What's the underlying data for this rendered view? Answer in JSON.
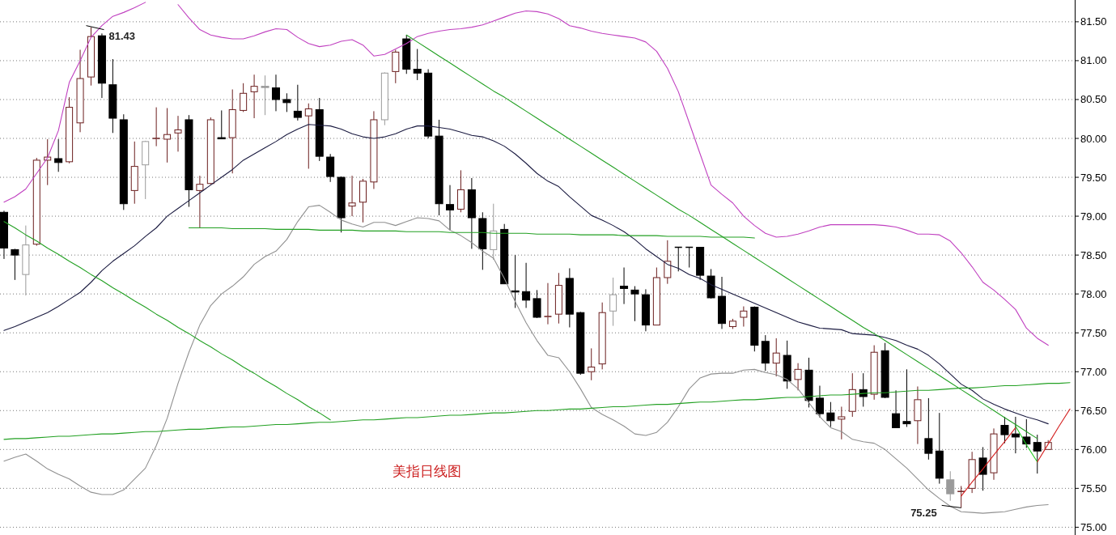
{
  "chart_data": {
    "type": "candlestick",
    "categories": [
      null,
      null,
      null,
      null,
      null,
      null,
      null,
      null,
      null,
      null,
      null,
      null,
      null,
      null,
      null,
      null,
      null,
      null,
      null,
      null,
      null,
      null,
      null,
      null,
      null,
      null,
      null,
      null,
      null,
      null,
      null,
      null,
      null,
      null,
      null,
      null,
      null,
      null,
      null,
      null,
      null,
      null,
      null,
      null,
      null,
      null,
      null,
      null,
      null,
      null,
      null,
      null,
      null,
      null,
      null,
      null,
      null,
      null,
      null,
      null,
      null,
      null,
      null,
      null,
      null,
      null,
      null,
      null,
      null,
      null,
      null,
      null,
      null,
      null,
      null,
      null,
      null,
      null,
      null,
      null,
      null,
      null,
      null,
      null,
      null,
      null,
      null,
      null,
      null,
      null,
      null,
      null,
      null,
      null,
      null,
      null,
      null,
      null,
      null
    ],
    "ohlc": [
      [
        79.05,
        79.07,
        78.45,
        78.59
      ],
      [
        78.57,
        78.58,
        78.18,
        78.5
      ],
      [
        78.25,
        78.88,
        77.98,
        78.63
      ],
      [
        78.64,
        79.75,
        78.62,
        79.72
      ],
      [
        79.72,
        79.99,
        79.4,
        79.76
      ],
      [
        79.74,
        79.99,
        79.57,
        79.69
      ],
      [
        79.7,
        80.53,
        79.68,
        80.4
      ],
      [
        80.2,
        81.14,
        80.08,
        80.77
      ],
      [
        80.79,
        81.43,
        80.68,
        81.31
      ],
      [
        81.32,
        81.35,
        80.52,
        80.71
      ],
      [
        80.69,
        81.02,
        80.07,
        80.26
      ],
      [
        80.24,
        80.31,
        79.08,
        79.16
      ],
      [
        79.33,
        79.96,
        79.16,
        79.64
      ],
      [
        79.66,
        79.97,
        79.22,
        79.96
      ],
      [
        79.99,
        80.4,
        79.9,
        80.0
      ],
      [
        79.99,
        80.39,
        79.69,
        80.05
      ],
      [
        80.07,
        80.29,
        79.83,
        80.11
      ],
      [
        80.24,
        80.3,
        79.12,
        79.34
      ],
      [
        79.33,
        79.52,
        78.85,
        79.41
      ],
      [
        79.42,
        80.27,
        79.41,
        80.24
      ],
      [
        80.01,
        80.36,
        79.99,
        80.0
      ],
      [
        80.01,
        80.63,
        79.55,
        80.37
      ],
      [
        80.36,
        80.71,
        80.34,
        80.58
      ],
      [
        80.6,
        80.82,
        80.26,
        80.67
      ],
      [
        80.67,
        80.81,
        80.3,
        80.66
      ],
      [
        80.65,
        80.82,
        80.35,
        80.5
      ],
      [
        80.5,
        80.58,
        80.34,
        80.46
      ],
      [
        80.35,
        80.69,
        80.23,
        80.27
      ],
      [
        80.29,
        80.45,
        79.61,
        80.38
      ],
      [
        80.37,
        80.52,
        79.71,
        79.77
      ],
      [
        79.76,
        79.8,
        79.44,
        79.51
      ],
      [
        79.5,
        79.51,
        78.79,
        78.98
      ],
      [
        79.13,
        79.52,
        79.0,
        79.17
      ],
      [
        79.18,
        79.48,
        78.92,
        79.45
      ],
      [
        79.44,
        80.35,
        79.35,
        80.24
      ],
      [
        80.24,
        80.85,
        80.17,
        80.84
      ],
      [
        80.86,
        81.14,
        80.71,
        81.11
      ],
      [
        81.28,
        81.33,
        80.83,
        80.89
      ],
      [
        80.89,
        81.15,
        80.75,
        80.84
      ],
      [
        80.84,
        80.89,
        80.0,
        80.03
      ],
      [
        80.03,
        80.24,
        79.01,
        79.16
      ],
      [
        79.15,
        79.4,
        78.82,
        79.08
      ],
      [
        79.09,
        79.59,
        79.05,
        79.34
      ],
      [
        79.34,
        79.49,
        78.58,
        78.98
      ],
      [
        78.97,
        79.05,
        78.31,
        78.58
      ],
      [
        78.57,
        79.16,
        78.44,
        78.81
      ],
      [
        78.83,
        78.9,
        78.13,
        78.13
      ],
      [
        78.04,
        78.5,
        77.82,
        78.03
      ],
      [
        78.03,
        78.4,
        77.82,
        77.92
      ],
      [
        77.94,
        78.05,
        77.69,
        77.7
      ],
      [
        77.7,
        78.14,
        77.61,
        77.71
      ],
      [
        77.74,
        78.27,
        77.62,
        78.11
      ],
      [
        78.2,
        78.33,
        77.57,
        77.74
      ],
      [
        77.76,
        77.77,
        76.96,
        76.98
      ],
      [
        77.0,
        77.3,
        76.89,
        77.06
      ],
      [
        77.1,
        77.89,
        77.03,
        77.76
      ],
      [
        77.78,
        78.21,
        77.59,
        77.99
      ],
      [
        78.1,
        78.34,
        77.87,
        78.07
      ],
      [
        78.05,
        78.1,
        77.65,
        78.0
      ],
      [
        77.99,
        78.06,
        77.52,
        77.6
      ],
      [
        77.6,
        78.34,
        77.6,
        78.21
      ],
      [
        78.21,
        78.69,
        78.13,
        78.42
      ],
      [
        78.6,
        78.6,
        78.29,
        78.6
      ],
      [
        78.6,
        78.6,
        78.34,
        78.6
      ],
      [
        78.6,
        78.6,
        78.18,
        78.24
      ],
      [
        78.23,
        78.32,
        77.94,
        77.95
      ],
      [
        77.97,
        78.22,
        77.55,
        77.62
      ],
      [
        77.58,
        77.68,
        77.55,
        77.65
      ],
      [
        77.7,
        77.84,
        77.58,
        77.78
      ],
      [
        77.83,
        77.84,
        77.26,
        77.34
      ],
      [
        77.39,
        77.47,
        77.01,
        77.11
      ],
      [
        77.11,
        77.43,
        76.94,
        77.24
      ],
      [
        77.21,
        77.4,
        76.78,
        76.88
      ],
      [
        76.9,
        77.11,
        76.76,
        77.03
      ],
      [
        77.02,
        77.18,
        76.54,
        76.63
      ],
      [
        76.66,
        76.82,
        76.41,
        76.46
      ],
      [
        76.47,
        76.61,
        76.29,
        76.37
      ],
      [
        76.39,
        76.55,
        76.13,
        76.42
      ],
      [
        76.49,
        76.98,
        76.42,
        76.77
      ],
      [
        76.77,
        76.98,
        76.55,
        76.68
      ],
      [
        76.71,
        77.34,
        76.64,
        77.25
      ],
      [
        77.27,
        77.37,
        76.66,
        76.67
      ],
      [
        76.46,
        76.76,
        76.28,
        76.28
      ],
      [
        76.36,
        77.03,
        76.29,
        76.33
      ],
      [
        76.37,
        76.81,
        76.07,
        76.64
      ],
      [
        76.14,
        76.66,
        75.87,
        75.95
      ],
      [
        75.98,
        76.47,
        75.56,
        75.63
      ],
      [
        75.61,
        75.72,
        75.34,
        75.43
      ],
      [
        75.45,
        75.53,
        75.25,
        75.46
      ],
      [
        75.5,
        75.97,
        75.44,
        75.87
      ],
      [
        75.89,
        76.03,
        75.47,
        75.68
      ],
      [
        75.7,
        76.27,
        75.61,
        76.2
      ],
      [
        76.31,
        76.42,
        76.08,
        76.19
      ],
      [
        76.2,
        76.42,
        75.95,
        76.16
      ],
      [
        76.16,
        76.39,
        76.02,
        76.07
      ],
      [
        76.09,
        76.19,
        75.69,
        75.98
      ],
      [
        76.0,
        76.12,
        76.0,
        76.09
      ],
      null,
      null
    ],
    "colors": [
      "#000000",
      "#000000",
      "#9a9a9a",
      "#6b1e1e",
      "#6b1e1e",
      "#000000",
      "#6b1e1e",
      "#6b1e1e",
      "#6b1e1e",
      "#000000",
      "#000000",
      "#000000",
      "#6b1e1e",
      "#9a9a9a",
      "#6b1e1e",
      "#6b1e1e",
      "#6b1e1e",
      "#000000",
      "#6b1e1e",
      "#6b1e1e",
      "#000000",
      "#6b1e1e",
      "#6b1e1e",
      "#6b1e1e",
      "#9a9a9a",
      "#000000",
      "#000000",
      "#000000",
      "#6b1e1e",
      "#000000",
      "#000000",
      "#000000",
      "#6b1e1e",
      "#6b1e1e",
      "#6b1e1e",
      "#9a9a9a",
      "#6b1e1e",
      "#000000",
      "#000000",
      "#000000",
      "#000000",
      "#000000",
      "#6b1e1e",
      "#000000",
      "#000000",
      "#9a9a9a",
      "#000000",
      "#000000",
      "#000000",
      "#000000",
      "#6b1e1e",
      "#6b1e1e",
      "#000000",
      "#000000",
      "#6b1e1e",
      "#6b1e1e",
      "#9a9a9a",
      "#000000",
      "#000000",
      "#000000",
      "#6b1e1e",
      "#6b1e1e",
      "#000000",
      "#000000",
      "#000000",
      "#000000",
      "#000000",
      "#6b1e1e",
      "#6b1e1e",
      "#000000",
      "#000000",
      "#6b1e1e",
      "#000000",
      "#6b1e1e",
      "#000000",
      "#000000",
      "#000000",
      "#6b1e1e",
      "#6b1e1e",
      "#000000",
      "#6b1e1e",
      "#000000",
      "#000000",
      "#000000",
      "#6b1e1e",
      "#000000",
      "#000000",
      "#9a9a9a",
      "#6b1e1e",
      "#6b1e1e",
      "#000000",
      "#6b1e1e",
      "#000000",
      "#000000",
      "#000000",
      "#000000",
      "#6b1e1e",
      null,
      null
    ],
    "series": [
      {
        "type": "line",
        "color": "#1a1a40",
        "values": [
          77.53,
          77.58,
          77.64,
          77.7,
          77.76,
          77.84,
          77.93,
          78.02,
          78.15,
          78.3,
          78.42,
          78.52,
          78.62,
          78.74,
          78.85,
          79.0,
          79.1,
          79.2,
          79.3,
          79.4,
          79.5,
          79.6,
          79.72,
          79.8,
          79.88,
          79.96,
          80.05,
          80.12,
          80.18,
          80.17,
          80.16,
          80.12,
          80.06,
          80.02,
          80.0,
          80.02,
          80.06,
          80.12,
          80.16,
          80.16,
          80.14,
          80.12,
          80.08,
          80.04,
          80.02,
          79.97,
          79.9,
          79.8,
          79.68,
          79.55,
          79.45,
          79.38,
          79.25,
          79.13,
          79.01,
          78.95,
          78.88,
          78.8,
          78.7,
          78.58,
          78.48,
          78.38,
          78.33,
          78.25,
          78.2,
          78.12,
          78.06,
          78.0,
          77.94,
          77.88,
          77.82,
          77.76,
          77.7,
          77.64,
          77.6,
          77.56,
          77.55,
          77.54,
          77.49,
          77.48,
          77.47,
          77.44,
          77.4,
          77.34,
          77.29,
          77.21,
          77.1,
          76.97,
          76.84,
          76.76,
          76.65,
          76.58,
          76.52,
          76.47,
          76.42,
          76.38,
          76.33,
          null,
          null
        ]
      },
      {
        "type": "line",
        "color": "#c040c0",
        "values": [
          79.18,
          79.25,
          79.35,
          79.55,
          79.75,
          80.1,
          80.72,
          81.0,
          81.3,
          81.45,
          81.57,
          81.62,
          81.68,
          81.75,
          null,
          null,
          81.72,
          81.55,
          81.4,
          81.33,
          81.3,
          81.28,
          81.28,
          81.32,
          81.37,
          81.41,
          81.4,
          81.3,
          81.22,
          81.18,
          81.2,
          81.25,
          81.27,
          81.2,
          81.06,
          81.08,
          81.15,
          81.22,
          81.31,
          81.35,
          81.38,
          81.4,
          81.41,
          81.43,
          81.46,
          81.51,
          81.56,
          81.61,
          81.64,
          81.63,
          81.6,
          81.54,
          81.45,
          81.42,
          81.38,
          81.35,
          81.33,
          81.31,
          81.29,
          81.24,
          81.12,
          80.9,
          80.6,
          80.2,
          79.8,
          79.4,
          79.28,
          79.17,
          79.0,
          78.88,
          78.78,
          78.73,
          78.74,
          78.77,
          78.81,
          78.86,
          78.89,
          78.89,
          78.89,
          78.89,
          78.89,
          78.88,
          78.86,
          78.82,
          78.77,
          78.77,
          78.76,
          78.68,
          78.53,
          78.35,
          78.15,
          78.05,
          77.93,
          77.8,
          77.56,
          77.43,
          77.34,
          null,
          null
        ]
      },
      {
        "type": "line",
        "color": "#909090",
        "values": [
          75.85,
          75.9,
          75.94,
          75.85,
          75.75,
          75.68,
          75.62,
          75.53,
          75.45,
          75.42,
          75.42,
          75.48,
          75.62,
          75.76,
          76.05,
          76.4,
          76.85,
          77.25,
          77.6,
          77.85,
          78.0,
          78.1,
          78.22,
          78.38,
          78.48,
          78.55,
          78.7,
          78.93,
          79.12,
          79.14,
          79.05,
          78.95,
          78.9,
          78.86,
          78.92,
          78.92,
          78.88,
          78.93,
          78.98,
          78.97,
          78.94,
          78.82,
          78.75,
          78.66,
          78.55,
          78.46,
          78.2,
          77.9,
          77.63,
          77.4,
          77.21,
          77.18,
          77.0,
          76.78,
          76.54,
          76.45,
          76.38,
          76.3,
          76.2,
          76.18,
          76.22,
          76.35,
          76.55,
          76.78,
          76.92,
          76.97,
          76.98,
          76.98,
          77.02,
          77.03,
          76.99,
          76.96,
          76.9,
          76.78,
          76.6,
          76.42,
          76.28,
          76.23,
          76.13,
          76.1,
          76.08,
          76.0,
          75.88,
          75.76,
          75.62,
          75.48,
          75.37,
          75.27,
          75.2,
          75.19,
          75.18,
          75.19,
          75.2,
          75.23,
          75.26,
          75.28,
          75.29,
          null,
          null
        ]
      },
      {
        "type": "line",
        "color": "#22a022",
        "values": [
          78.93,
          78.85,
          78.76,
          78.68,
          78.59,
          78.51,
          78.42,
          78.34,
          78.25,
          78.17,
          78.08,
          78.0,
          77.91,
          77.83,
          77.74,
          77.66,
          77.57,
          77.49,
          77.4,
          77.32,
          77.23,
          77.15,
          77.06,
          76.98,
          76.89,
          76.81,
          76.72,
          76.64,
          76.55,
          76.47,
          76.38,
          null,
          null,
          null,
          null,
          null,
          null,
          null,
          null,
          null,
          null,
          null,
          null,
          null,
          null,
          null,
          null,
          null,
          null,
          null,
          null,
          null,
          null,
          null,
          null,
          null,
          null,
          null,
          null,
          null,
          null,
          null,
          null,
          null,
          null,
          null,
          null,
          null,
          null,
          null,
          null,
          null,
          null,
          null,
          null,
          null,
          null,
          null,
          null,
          null,
          null,
          null,
          null,
          null,
          null,
          null,
          null,
          null,
          null,
          null,
          null,
          null,
          null,
          null,
          null,
          null,
          null,
          null,
          null
        ]
      },
      {
        "type": "line",
        "color": "#22a022",
        "values": [
          76.13,
          76.14,
          76.14,
          76.15,
          76.16,
          76.17,
          76.17,
          76.18,
          76.19,
          76.2,
          76.2,
          76.21,
          76.22,
          76.23,
          76.23,
          76.24,
          76.25,
          76.26,
          76.26,
          76.27,
          76.28,
          76.29,
          76.29,
          76.3,
          76.31,
          76.32,
          76.32,
          76.33,
          76.34,
          76.35,
          76.35,
          76.36,
          76.37,
          76.38,
          76.38,
          76.39,
          76.4,
          76.41,
          76.41,
          76.42,
          76.43,
          76.44,
          76.44,
          76.45,
          76.46,
          76.47,
          76.47,
          76.48,
          76.49,
          76.5,
          76.5,
          76.51,
          76.52,
          76.52,
          76.53,
          76.54,
          76.55,
          76.55,
          76.56,
          76.57,
          76.58,
          76.58,
          76.59,
          76.6,
          76.61,
          76.61,
          76.62,
          76.63,
          76.64,
          76.64,
          76.65,
          76.66,
          76.67,
          76.67,
          76.68,
          76.69,
          76.7,
          76.7,
          76.71,
          76.72,
          76.73,
          76.73,
          76.74,
          76.75,
          76.76,
          76.76,
          76.77,
          76.78,
          76.79,
          76.79,
          76.8,
          76.81,
          76.82,
          76.82,
          76.83,
          76.84,
          76.85,
          76.85,
          76.86
        ]
      },
      {
        "type": "line",
        "color": "#22a022",
        "values": [
          null,
          null,
          null,
          null,
          null,
          null,
          null,
          null,
          null,
          null,
          null,
          null,
          null,
          null,
          null,
          null,
          null,
          null,
          null,
          null,
          null,
          null,
          null,
          null,
          null,
          null,
          null,
          null,
          null,
          null,
          null,
          null,
          null,
          null,
          null,
          null,
          null,
          81.33,
          81.24,
          81.15,
          81.06,
          80.97,
          80.88,
          80.79,
          80.7,
          80.61,
          80.53,
          80.44,
          80.35,
          80.26,
          80.17,
          80.08,
          79.99,
          79.9,
          79.81,
          79.72,
          79.63,
          79.54,
          79.45,
          79.36,
          79.27,
          79.18,
          79.09,
          79.01,
          78.92,
          78.83,
          78.74,
          78.65,
          78.56,
          78.47,
          78.38,
          78.29,
          78.2,
          78.11,
          78.02,
          77.93,
          77.84,
          77.75,
          77.66,
          77.57,
          77.49,
          77.4,
          77.31,
          77.22,
          77.13,
          77.04,
          76.95,
          76.86,
          76.77,
          76.68,
          76.59,
          76.5,
          76.41,
          76.32,
          76.23,
          76.14,
          null,
          null,
          null
        ]
      },
      {
        "type": "line",
        "color": "#22a022",
        "values": [
          null,
          null,
          null,
          null,
          null,
          null,
          null,
          null,
          null,
          null,
          null,
          null,
          null,
          null,
          null,
          null,
          null,
          78.85,
          78.85,
          78.85,
          78.85,
          78.84,
          78.84,
          78.84,
          78.84,
          78.83,
          78.83,
          78.83,
          78.83,
          78.82,
          78.82,
          78.82,
          78.82,
          78.81,
          78.81,
          78.81,
          78.81,
          78.8,
          78.8,
          78.8,
          78.8,
          78.79,
          78.79,
          78.79,
          78.79,
          78.78,
          78.78,
          78.78,
          78.78,
          78.77,
          78.77,
          78.77,
          78.77,
          78.76,
          78.76,
          78.76,
          78.76,
          78.75,
          78.75,
          78.75,
          78.75,
          78.74,
          78.74,
          78.74,
          78.74,
          78.73,
          78.73,
          78.73,
          78.73,
          78.72,
          null,
          null,
          null,
          null,
          null,
          null,
          null,
          null,
          null,
          null,
          null,
          null,
          null,
          null,
          null,
          null,
          null,
          null,
          null,
          null,
          null,
          null,
          null,
          null,
          null,
          null,
          null,
          null,
          null
        ]
      },
      {
        "type": "line",
        "color": "#d42020",
        "values": [
          null,
          null,
          null,
          null,
          null,
          null,
          null,
          null,
          null,
          null,
          null,
          null,
          null,
          null,
          null,
          null,
          null,
          null,
          null,
          null,
          null,
          null,
          null,
          null,
          null,
          null,
          null,
          null,
          null,
          null,
          null,
          null,
          null,
          null,
          null,
          null,
          null,
          null,
          null,
          null,
          null,
          null,
          null,
          null,
          null,
          null,
          null,
          null,
          null,
          null,
          null,
          null,
          null,
          null,
          null,
          null,
          null,
          null,
          null,
          null,
          null,
          null,
          null,
          null,
          null,
          null,
          null,
          null,
          null,
          null,
          null,
          null,
          null,
          null,
          null,
          null,
          null,
          null,
          null,
          null,
          null,
          null,
          null,
          null,
          null,
          null,
          null,
          null,
          75.4,
          75.58,
          75.75,
          75.93,
          76.1,
          76.28,
          null,
          null,
          null,
          null,
          null
        ]
      },
      {
        "type": "line",
        "color": "#22cc22",
        "values": [
          null,
          null,
          null,
          null,
          null,
          null,
          null,
          null,
          null,
          null,
          null,
          null,
          null,
          null,
          null,
          null,
          null,
          null,
          null,
          null,
          null,
          null,
          null,
          null,
          null,
          null,
          null,
          null,
          null,
          null,
          null,
          null,
          null,
          null,
          null,
          null,
          null,
          null,
          null,
          null,
          null,
          null,
          null,
          null,
          null,
          null,
          null,
          null,
          null,
          null,
          null,
          null,
          null,
          null,
          null,
          null,
          null,
          null,
          null,
          null,
          null,
          null,
          null,
          null,
          null,
          null,
          null,
          null,
          null,
          null,
          null,
          null,
          null,
          null,
          null,
          null,
          null,
          null,
          null,
          null,
          null,
          null,
          null,
          null,
          null,
          null,
          null,
          null,
          null,
          null,
          null,
          null,
          null,
          76.3,
          76.06,
          75.84,
          null,
          null,
          null
        ]
      },
      {
        "type": "line",
        "color": "#d42020",
        "values": [
          null,
          null,
          null,
          null,
          null,
          null,
          null,
          null,
          null,
          null,
          null,
          null,
          null,
          null,
          null,
          null,
          null,
          null,
          null,
          null,
          null,
          null,
          null,
          null,
          null,
          null,
          null,
          null,
          null,
          null,
          null,
          null,
          null,
          null,
          null,
          null,
          null,
          null,
          null,
          null,
          null,
          null,
          null,
          null,
          null,
          null,
          null,
          null,
          null,
          null,
          null,
          null,
          null,
          null,
          null,
          null,
          null,
          null,
          null,
          null,
          null,
          null,
          null,
          null,
          null,
          null,
          null,
          null,
          null,
          null,
          null,
          null,
          null,
          null,
          null,
          null,
          null,
          null,
          null,
          null,
          null,
          null,
          null,
          null,
          null,
          null,
          null,
          null,
          null,
          null,
          null,
          null,
          null,
          null,
          null,
          75.84,
          76.07,
          76.3,
          76.52
        ]
      }
    ],
    "ylim": [
      74.9,
      81.78
    ],
    "yticks": [
      {
        "value": 75,
        "label": "75.00"
      },
      {
        "value": 75.5,
        "label": "75.50"
      },
      {
        "value": 76,
        "label": "76.00"
      },
      {
        "value": 76.5,
        "label": "76.50"
      },
      {
        "value": 77,
        "label": "77.00"
      },
      {
        "value": 77.5,
        "label": "77.50"
      },
      {
        "value": 78,
        "label": "78.00"
      },
      {
        "value": 78.5,
        "label": "78.50"
      },
      {
        "value": 79,
        "label": "79.00"
      },
      {
        "value": 79.5,
        "label": "79.50"
      },
      {
        "value": 80,
        "label": "80.00"
      },
      {
        "value": 80.5,
        "label": "80.50"
      },
      {
        "value": 81,
        "label": "81.00"
      },
      {
        "value": 81.5,
        "label": "81.50"
      }
    ],
    "grid": "y",
    "annotations": [
      "81.43",
      "75.25",
      "美指日线图"
    ]
  }
}
